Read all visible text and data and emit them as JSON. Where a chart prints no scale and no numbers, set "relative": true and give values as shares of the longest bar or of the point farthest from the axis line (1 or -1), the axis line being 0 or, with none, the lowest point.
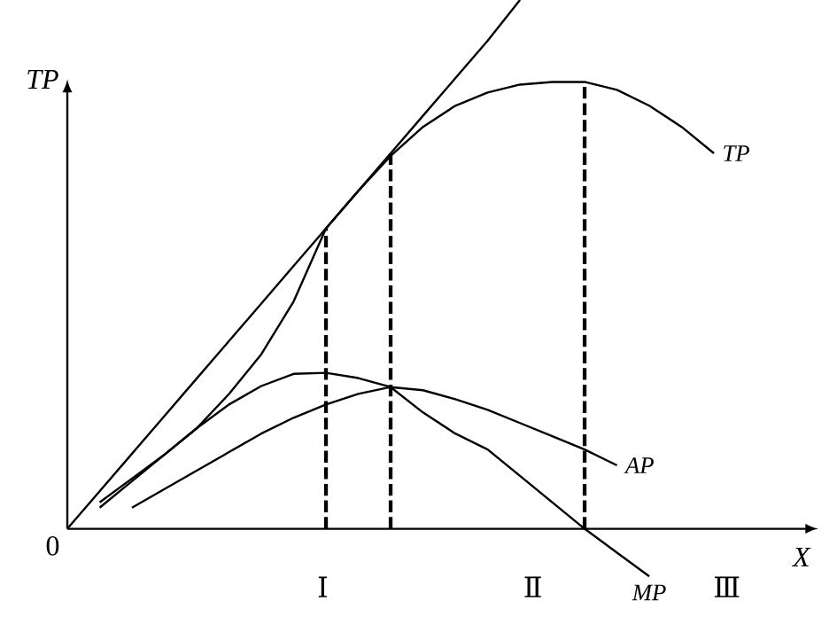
{
  "chart_data": {
    "type": "line",
    "relative": true,
    "xlabel": "X",
    "ylabel": "TP",
    "annotations": [
      "0",
      "Ⅰ",
      "Ⅱ",
      "Ⅲ"
    ],
    "categories": [
      null,
      null,
      null,
      null,
      null,
      null,
      null,
      null,
      null,
      null,
      null,
      null,
      null,
      null,
      null,
      null,
      null,
      null,
      null,
      null,
      null
    ],
    "series": [
      {
        "color": "#000000",
        "values": [
          0,
          0.071,
          0.142,
          0.213,
          0.284,
          0.355,
          0.426,
          0.497,
          0.568,
          0.639,
          0.71,
          0.781,
          0.852,
          0.923,
          1,
          null,
          null,
          null,
          null,
          null,
          null
        ]
      },
      {
        "name": "TP",
        "color": "#000000",
        "values": [
          null,
          0.05,
          0.095,
          0.14,
          0.19,
          0.255,
          0.33,
          0.43,
          0.568,
          0.639,
          0.705,
          0.76,
          0.8,
          0.825,
          0.84,
          0.845,
          0.845,
          0.83,
          0.8,
          0.76,
          0.71
        ]
      },
      {
        "name": "AP",
        "color": "#000000",
        "values": [
          null,
          null,
          0.04,
          0.075,
          0.11,
          0.145,
          0.18,
          0.21,
          0.235,
          0.255,
          0.268,
          0.262,
          0.245,
          0.225,
          0.2,
          0.175,
          0.15,
          0.12,
          null,
          null,
          null
        ]
      },
      {
        "name": "MP",
        "color": "#000000",
        "values": [
          null,
          0.04,
          0.09,
          0.14,
          0.19,
          0.235,
          0.27,
          0.293,
          0.295,
          0.285,
          0.268,
          0.22,
          0.18,
          0.15,
          0.1,
          0.05,
          0,
          -0.045,
          -0.09,
          null,
          null
        ]
      }
    ]
  }
}
